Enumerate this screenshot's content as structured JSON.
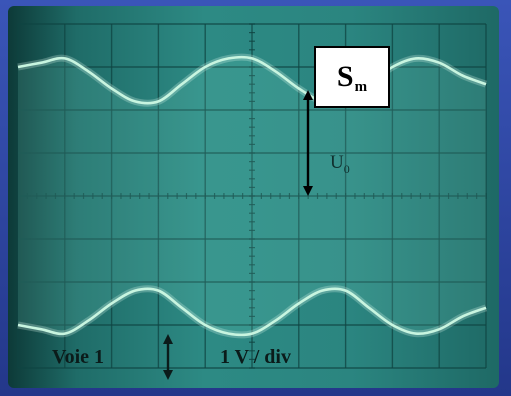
{
  "chart_data": {
    "type": "line",
    "title": "",
    "xlabel": "",
    "ylabel": "",
    "xlim": [
      0,
      10
    ],
    "ylim": [
      -4,
      4
    ],
    "grid": true,
    "grid_divisions": {
      "x": 10,
      "y": 8
    },
    "series": [
      {
        "x": [
          0,
          0.5,
          1,
          1.5,
          2,
          2.5,
          3,
          3.5,
          4,
          4.5,
          5,
          5.5,
          6,
          6.5,
          7,
          7.5,
          8,
          8.5,
          9,
          9.5,
          10
        ],
        "values": [
          3.0,
          3.1,
          3.2,
          2.9,
          2.5,
          2.2,
          2.2,
          2.6,
          3.0,
          3.2,
          3.2,
          2.9,
          2.5,
          2.2,
          2.2,
          2.6,
          3.0,
          3.2,
          3.1,
          2.8,
          2.6
        ]
      },
      {
        "x": [
          0,
          0.5,
          1,
          1.5,
          2,
          2.5,
          3,
          3.5,
          4,
          4.5,
          5,
          5.5,
          6,
          6.5,
          7,
          7.5,
          8,
          8.5,
          9,
          9.5,
          10
        ],
        "values": [
          -3.0,
          -3.1,
          -3.2,
          -2.9,
          -2.5,
          -2.2,
          -2.2,
          -2.6,
          -3.0,
          -3.2,
          -3.2,
          -2.9,
          -2.5,
          -2.2,
          -2.2,
          -2.6,
          -3.0,
          -3.2,
          -3.1,
          -2.8,
          -2.6
        ]
      }
    ],
    "annotations": {
      "signal_box_main": "S",
      "signal_box_sub": "m",
      "amplitude_main": "U",
      "amplitude_sub": "0",
      "channel": "Voie 1",
      "scale": "1 V / div"
    }
  },
  "colors": {
    "trace": "#c8f5e0",
    "grid": "#0f4442",
    "screen": "#2b8580"
  }
}
